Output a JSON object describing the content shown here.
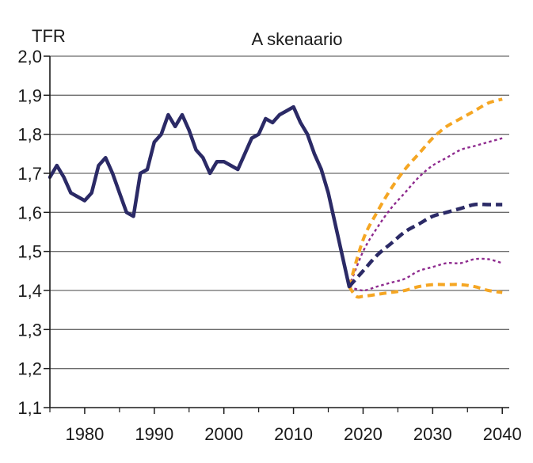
{
  "chart_data": {
    "type": "line",
    "title": "A skenaario",
    "ylabel": "TFR",
    "xlabel": "",
    "xlim": [
      1975,
      2041
    ],
    "ylim": [
      1.1,
      2.0
    ],
    "xticks": [
      1980,
      1990,
      2000,
      2010,
      2020,
      2030,
      2040
    ],
    "xtick_labels": [
      "1980",
      "1990",
      "2000",
      "2010",
      "2020",
      "2030",
      "2040"
    ],
    "yticks": [
      1.1,
      1.2,
      1.3,
      1.4,
      1.5,
      1.6,
      1.7,
      1.8,
      1.9,
      2.0
    ],
    "ytick_labels": [
      "1,1",
      "1,2",
      "1,3",
      "1,4",
      "1,5",
      "1,6",
      "1,7",
      "1,8",
      "1,9",
      "2,0"
    ],
    "grid": "horizontal",
    "colors": {
      "observed": "#2b2a66",
      "outer": "#f5a623",
      "inner": "#8e2a8e",
      "median": "#2b2a66"
    },
    "series": [
      {
        "style": "solid",
        "role": "observed",
        "x": [
          1975,
          1976,
          1977,
          1978,
          1979,
          1980,
          1981,
          1982,
          1983,
          1984,
          1985,
          1986,
          1987,
          1988,
          1989,
          1990,
          1991,
          1992,
          1993,
          1994,
          1995,
          1996,
          1997,
          1998,
          1999,
          2000,
          2001,
          2002,
          2003,
          2004,
          2005,
          2006,
          2007,
          2008,
          2009,
          2010,
          2011,
          2012,
          2013,
          2014,
          2015,
          2016,
          2017,
          2018
        ],
        "y": [
          1.69,
          1.72,
          1.69,
          1.65,
          1.64,
          1.63,
          1.65,
          1.72,
          1.74,
          1.7,
          1.65,
          1.6,
          1.59,
          1.7,
          1.71,
          1.78,
          1.8,
          1.85,
          1.82,
          1.85,
          1.81,
          1.76,
          1.74,
          1.7,
          1.73,
          1.73,
          1.72,
          1.71,
          1.75,
          1.79,
          1.8,
          1.84,
          1.83,
          1.85,
          1.86,
          1.87,
          1.83,
          1.8,
          1.75,
          1.71,
          1.65,
          1.57,
          1.49,
          1.41
        ]
      },
      {
        "style": "dashed",
        "role": "outer",
        "x": [
          2018,
          2020,
          2022,
          2024,
          2026,
          2028,
          2030,
          2032,
          2034,
          2036,
          2038,
          2040
        ],
        "y": [
          1.41,
          1.53,
          1.6,
          1.66,
          1.71,
          1.75,
          1.79,
          1.82,
          1.84,
          1.86,
          1.88,
          1.89
        ]
      },
      {
        "style": "dotted",
        "role": "inner",
        "x": [
          2018,
          2020,
          2022,
          2024,
          2026,
          2028,
          2030,
          2032,
          2034,
          2036,
          2038,
          2040
        ],
        "y": [
          1.41,
          1.5,
          1.56,
          1.61,
          1.65,
          1.69,
          1.72,
          1.74,
          1.76,
          1.77,
          1.78,
          1.79
        ]
      },
      {
        "style": "dashed",
        "role": "median",
        "x": [
          2018,
          2020,
          2022,
          2024,
          2026,
          2028,
          2030,
          2032,
          2034,
          2036,
          2038,
          2040
        ],
        "y": [
          1.41,
          1.45,
          1.49,
          1.52,
          1.55,
          1.57,
          1.59,
          1.6,
          1.61,
          1.62,
          1.62,
          1.62
        ]
      },
      {
        "style": "dotted",
        "role": "inner",
        "x": [
          2018,
          2020,
          2022,
          2024,
          2026,
          2028,
          2030,
          2032,
          2034,
          2036,
          2038,
          2040
        ],
        "y": [
          1.41,
          1.4,
          1.41,
          1.42,
          1.43,
          1.45,
          1.46,
          1.47,
          1.47,
          1.48,
          1.48,
          1.47
        ]
      },
      {
        "style": "dashed",
        "role": "outer",
        "x": [
          2018,
          2019,
          2020,
          2022,
          2024,
          2026,
          2028,
          2030,
          2032,
          2034,
          2036,
          2038,
          2040
        ],
        "y": [
          1.41,
          1.385,
          1.385,
          1.39,
          1.395,
          1.4,
          1.41,
          1.415,
          1.415,
          1.415,
          1.41,
          1.4,
          1.395
        ]
      }
    ]
  }
}
